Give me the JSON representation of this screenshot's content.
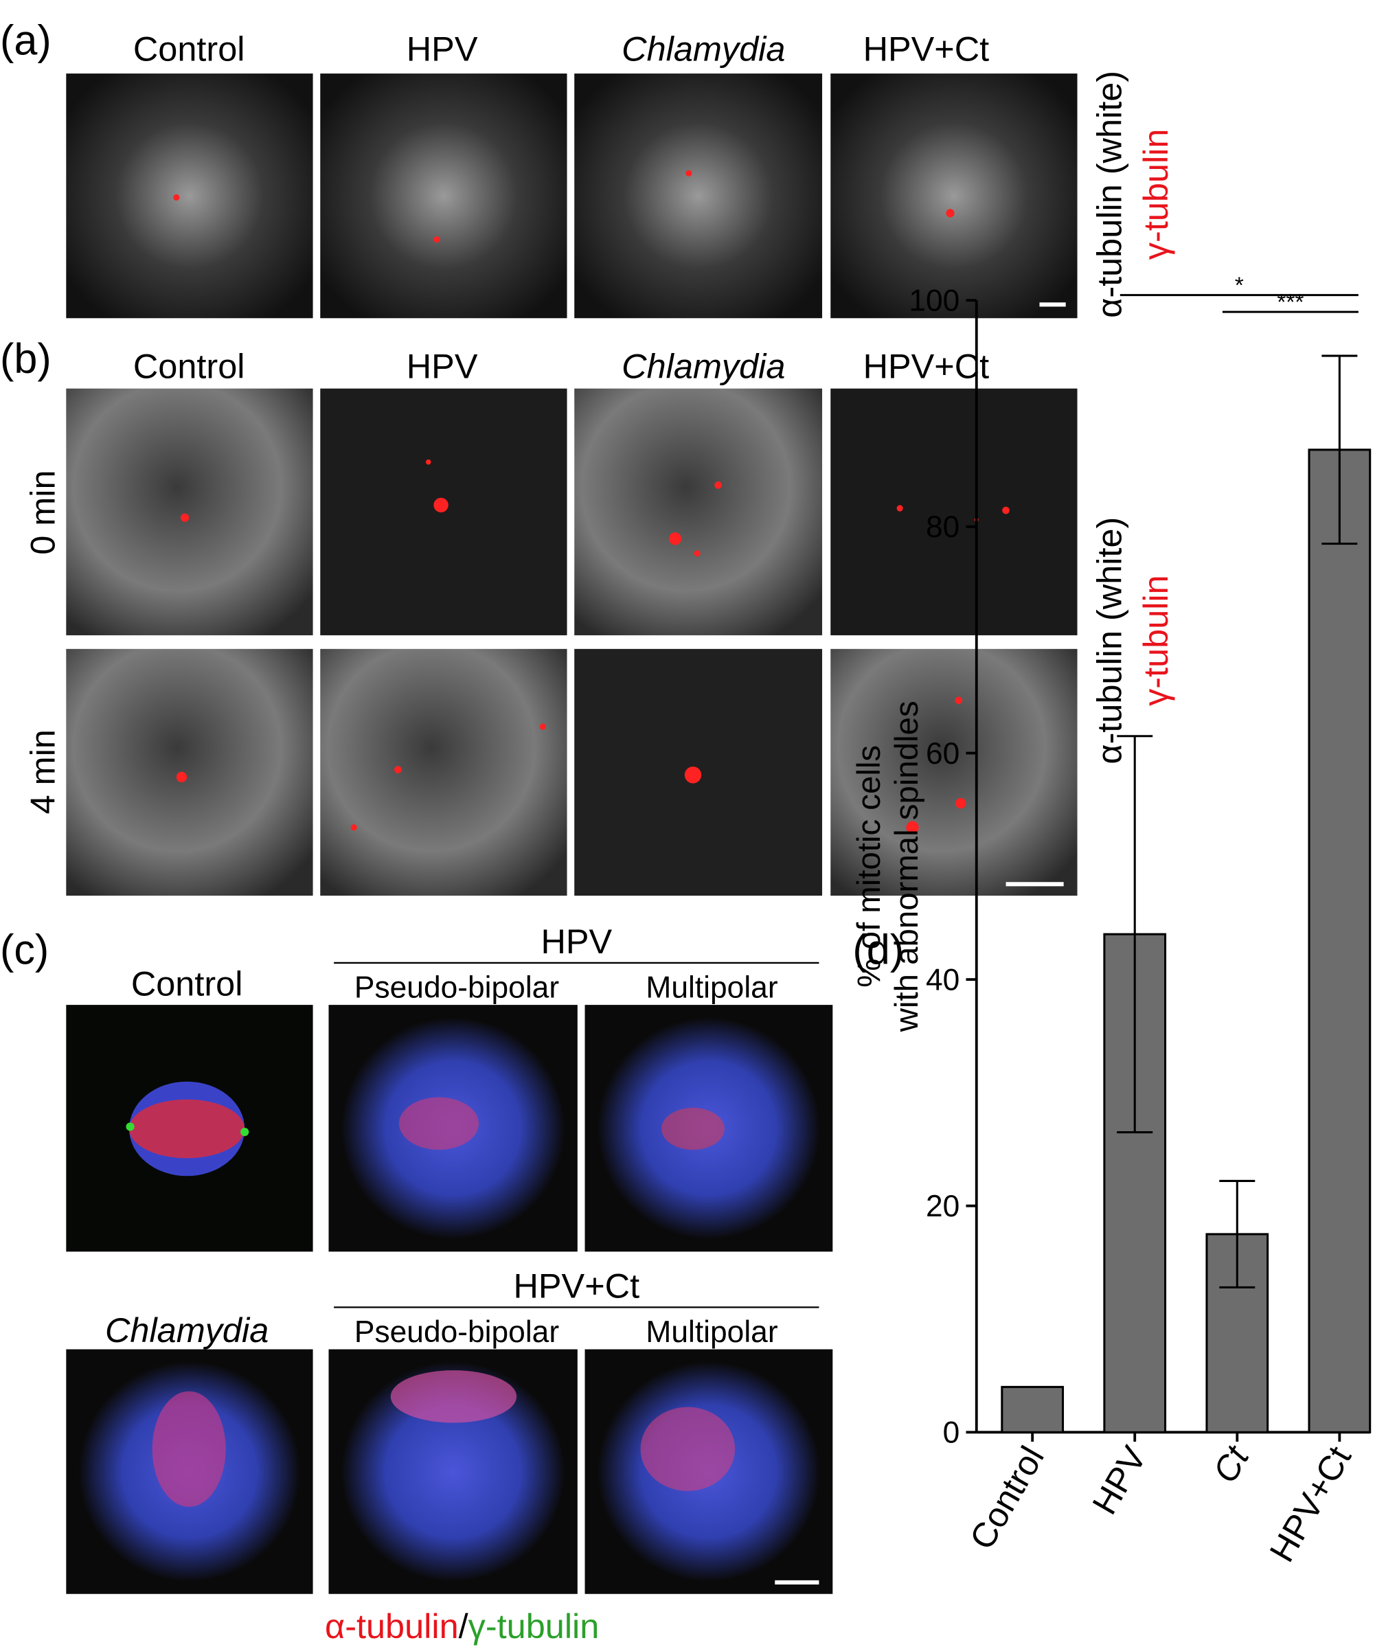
{
  "panels": {
    "a": {
      "label": "(a)",
      "columns": [
        "Control",
        "HPV",
        "Chlamydia",
        "HPV+Ct"
      ],
      "stain": [
        "α-tubulin (white)",
        "γ-tubulin"
      ]
    },
    "b": {
      "label": "(b)",
      "columns": [
        "Control",
        "HPV",
        "Chlamydia",
        "HPV+Ct"
      ],
      "rows": [
        "0 min",
        "4 min"
      ],
      "stain": [
        "α-tubulin (white)",
        "γ-tubulin"
      ]
    },
    "c": {
      "label": "(c)",
      "groups": [
        {
          "single": "Control",
          "title": "HPV",
          "subs": [
            "Pseudo-bipolar",
            "Multipolar"
          ]
        },
        {
          "single": "Chlamydia",
          "title": "HPV+Ct",
          "subs": [
            "Pseudo-bipolar",
            "Multipolar"
          ]
        }
      ],
      "stain": [
        "α-tubulin",
        "/",
        "γ-tubulin"
      ]
    },
    "d": {
      "label": "(d)"
    }
  },
  "chart_data": {
    "type": "bar",
    "ylabel": [
      "% of mitotic cells",
      "with abnormal spindles"
    ],
    "categories": [
      "Control",
      "HPV",
      "Ct",
      "HPV+Ct"
    ],
    "values": [
      4,
      44,
      17.5,
      86.8
    ],
    "errors": [
      null,
      17.5,
      4.7,
      8.3
    ],
    "color": "#6d6d6d",
    "ylim": [
      0,
      100
    ],
    "yticks": [
      0,
      20,
      40,
      60,
      80,
      100
    ],
    "significance": [
      {
        "label": "*",
        "from": 1,
        "to": 3
      },
      {
        "label": "***",
        "from": 2,
        "to": 3
      }
    ]
  }
}
